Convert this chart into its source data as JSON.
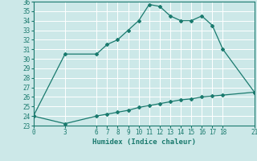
{
  "xlabel": "Humidex (Indice chaleur)",
  "bg_color": "#cce8e8",
  "line_color": "#1a7a6e",
  "grid_color": "#ffffff",
  "xlim": [
    0,
    21
  ],
  "ylim": [
    23,
    36
  ],
  "xticks": [
    0,
    3,
    6,
    7,
    8,
    9,
    10,
    11,
    12,
    13,
    14,
    15,
    16,
    17,
    18,
    21
  ],
  "yticks": [
    23,
    24,
    25,
    26,
    27,
    28,
    29,
    30,
    31,
    32,
    33,
    34,
    35,
    36
  ],
  "line1_x": [
    0,
    3,
    6,
    7,
    8,
    9,
    10,
    11,
    12,
    13,
    14,
    15,
    16,
    17,
    18,
    21
  ],
  "line1_y": [
    24.0,
    30.5,
    30.5,
    31.5,
    32.0,
    33.0,
    34.0,
    35.7,
    35.5,
    34.5,
    34.0,
    34.0,
    34.5,
    33.5,
    31.0,
    26.5
  ],
  "line2_x": [
    0,
    3,
    6,
    7,
    8,
    9,
    10,
    11,
    12,
    13,
    14,
    15,
    16,
    17,
    18,
    21
  ],
  "line2_y": [
    24.0,
    23.2,
    24.0,
    24.2,
    24.4,
    24.6,
    24.9,
    25.1,
    25.3,
    25.5,
    25.7,
    25.8,
    26.0,
    26.1,
    26.2,
    26.5
  ],
  "marker": "D",
  "marker_size": 2.0,
  "line_width": 0.9,
  "tick_fontsize": 5.5,
  "xlabel_fontsize": 6.5
}
